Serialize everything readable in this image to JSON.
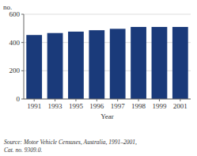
{
  "chart_data": {
    "type": "bar",
    "categories": [
      "1991",
      "1993",
      "1995",
      "1996",
      "1997",
      "1998",
      "1999",
      "2001"
    ],
    "values": [
      453,
      467,
      477,
      487,
      497,
      510,
      510,
      510
    ],
    "color": "#1a3a7a",
    "ylim": [
      0,
      600
    ],
    "yticks": [
      0,
      200,
      400,
      600
    ],
    "grid": true,
    "x_label": "Year",
    "y_label": "no.",
    "annotations": [
      "Source: Motor Vehicle Censuses, Australia, 1991–2001,\nCat. no. 9309.0."
    ]
  }
}
